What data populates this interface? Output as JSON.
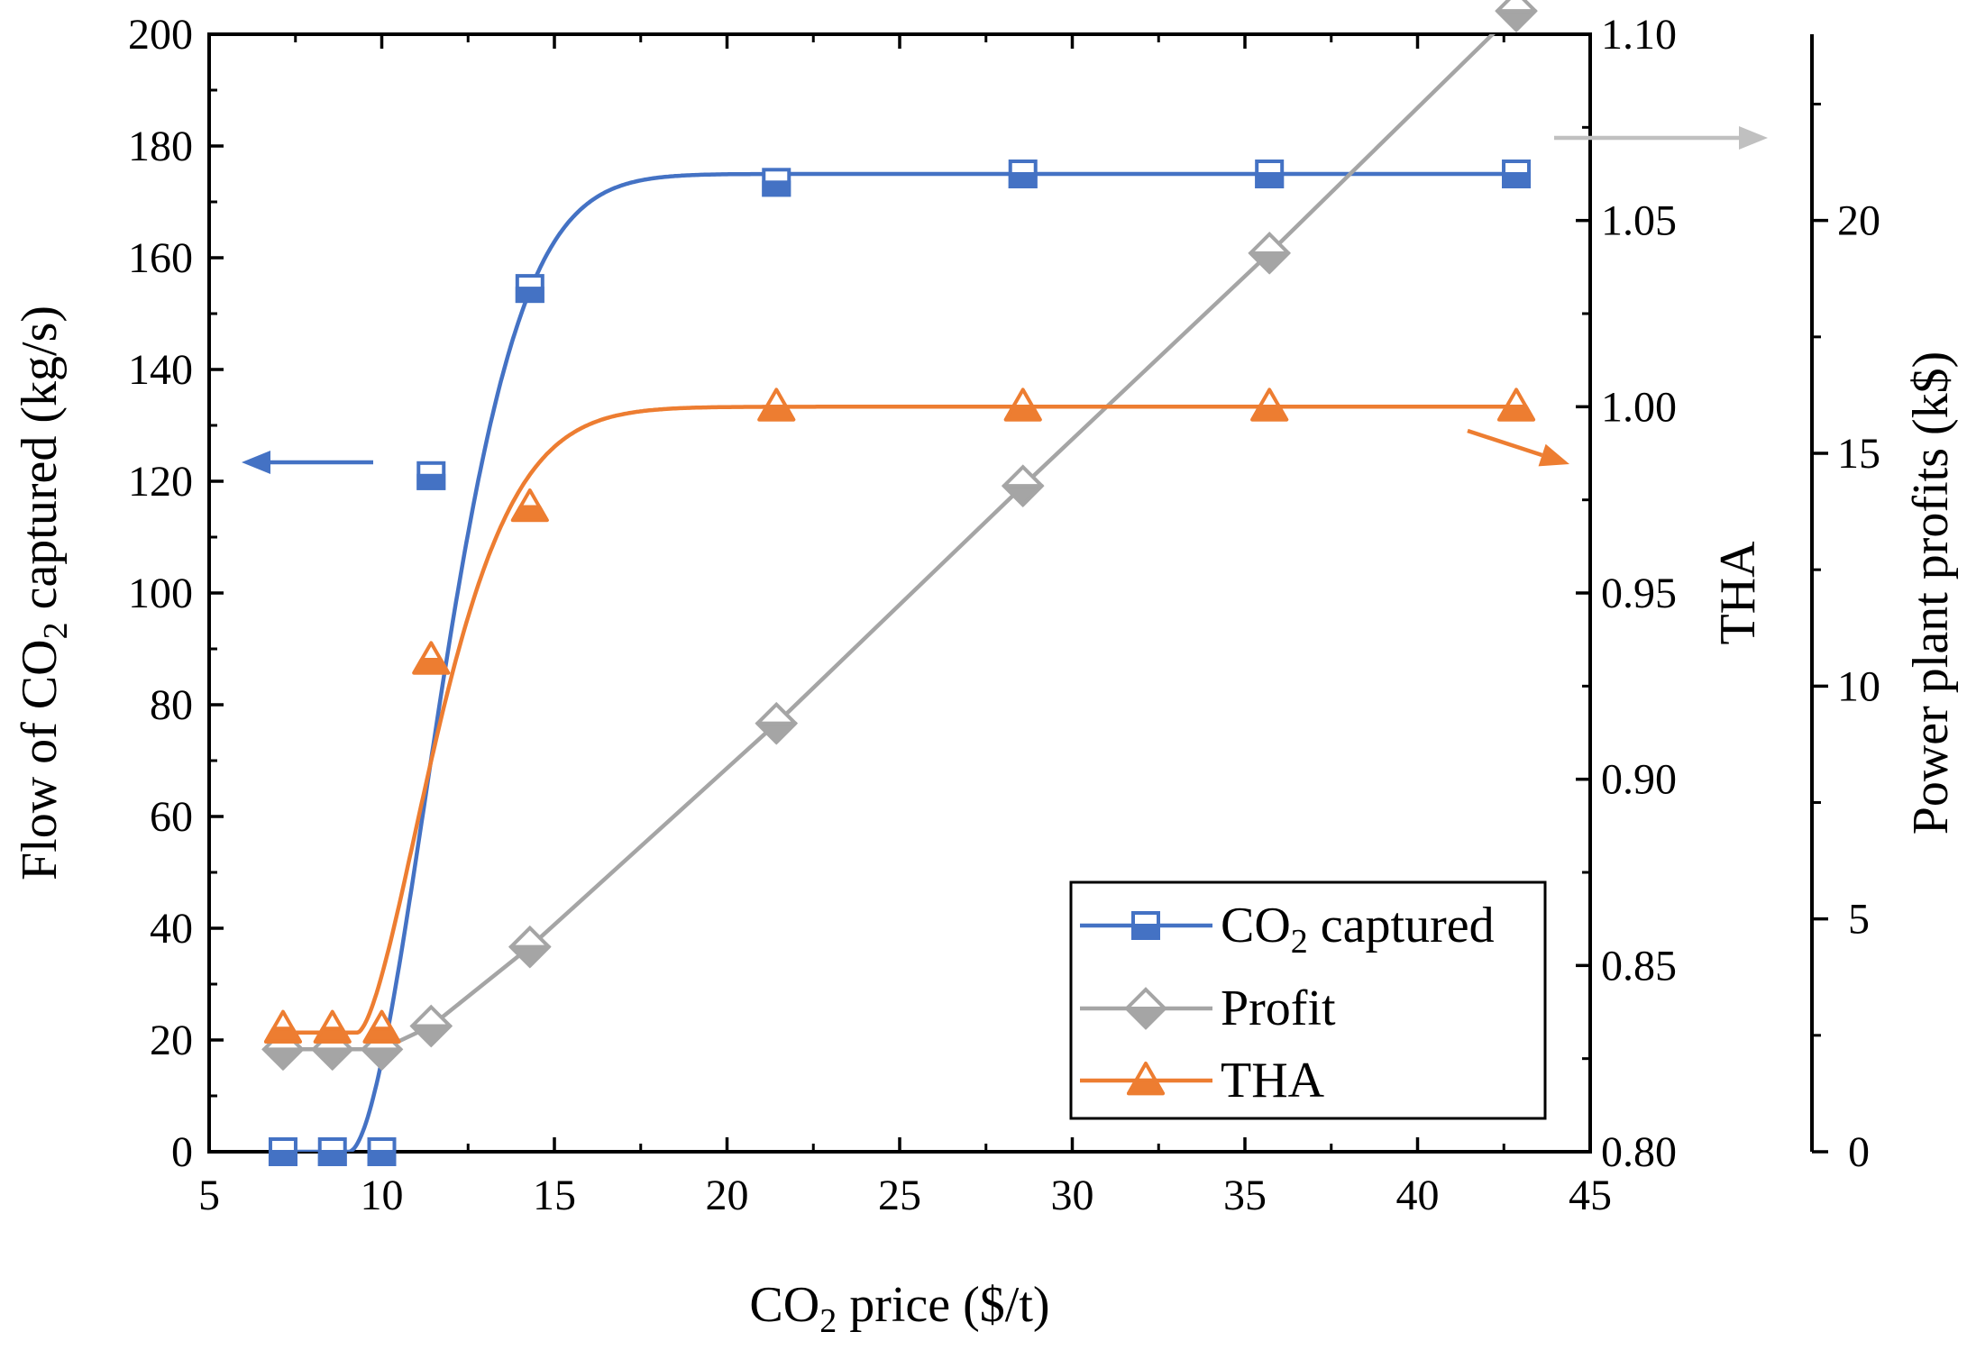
{
  "chart_data": {
    "type": "line",
    "title": "",
    "xlabel": {
      "pre": "CO",
      "sub": "2",
      "post": " price ($/t)"
    },
    "x": [
      7.14,
      8.57,
      10.0,
      11.43,
      14.29,
      21.43,
      28.57,
      35.71,
      42.86
    ],
    "xlim": [
      5,
      45
    ],
    "xticks": [
      5,
      10,
      15,
      20,
      25,
      30,
      35,
      40,
      45
    ],
    "axes": {
      "left": {
        "label": {
          "pre": "Flow of CO",
          "sub": "2",
          "post": " captured (kg/s)"
        },
        "lim": [
          0,
          200
        ],
        "ticks": [
          0,
          20,
          40,
          60,
          80,
          100,
          120,
          140,
          160,
          180,
          200
        ],
        "tick_labels": [
          "0",
          "20",
          "40",
          "60",
          "80",
          "100",
          "120",
          "140",
          "160",
          "180",
          "200"
        ]
      },
      "right1": {
        "label": "THA",
        "lim": [
          0.8,
          1.1
        ],
        "ticks": [
          0.8,
          0.85,
          0.9,
          0.95,
          1.0,
          1.05,
          1.1
        ],
        "tick_labels": [
          "0.80",
          "0.85",
          "0.90",
          "0.95",
          "1.00",
          "1.05",
          "1.10"
        ]
      },
      "right2": {
        "label": "Power plant profits (k$)",
        "lim": [
          0,
          24
        ],
        "ticks": [
          0,
          5,
          10,
          15,
          20
        ],
        "tick_labels": [
          "0",
          "5",
          "10",
          "15",
          "20"
        ]
      }
    },
    "series": [
      {
        "name": "CO2 captured",
        "legend": {
          "pre": "CO",
          "sub": "2",
          "post": " captured"
        },
        "axis": "left",
        "marker": "half-filled-square",
        "color": "#4472C4",
        "values": [
          0,
          0,
          0,
          121,
          154.5,
          173.5,
          175,
          175,
          175
        ],
        "fit": {
          "model": "saturating",
          "max": 175,
          "x0": 9.05,
          "k": 0.29,
          "n": 1.8
        }
      },
      {
        "name": "Profit",
        "legend": {
          "pre": "Profit",
          "sub": "",
          "post": ""
        },
        "axis": "right2",
        "marker": "half-filled-diamond",
        "color": "#A5A5A5",
        "values": [
          2.2,
          2.2,
          2.2,
          2.7,
          4.4,
          9.2,
          14.3,
          19.3,
          24.5
        ]
      },
      {
        "name": "THA",
        "legend": {
          "pre": "THA",
          "sub": "",
          "post": ""
        },
        "axis": "right1",
        "marker": "half-filled-triangle",
        "color": "#ED7D31",
        "values": [
          0.833,
          0.833,
          0.833,
          0.932,
          0.973,
          1.0,
          1.0,
          1.0,
          1.0
        ],
        "fit": {
          "model": "saturating",
          "min": 0.832,
          "max": 1.0,
          "x0": 9.3,
          "k": 0.33,
          "n": 1.6
        }
      }
    ],
    "annotations": [
      {
        "type": "arrow",
        "direction": "left",
        "points_to_axis": "left",
        "color": "#4472C4"
      },
      {
        "type": "arrow",
        "direction": "right-down",
        "points_to_axis": "right1",
        "color": "#ED7D31"
      },
      {
        "type": "arrow",
        "direction": "right",
        "points_to_axis": "right2",
        "color": "#C0C0C0"
      }
    ],
    "legend_position": "bottom-right"
  }
}
